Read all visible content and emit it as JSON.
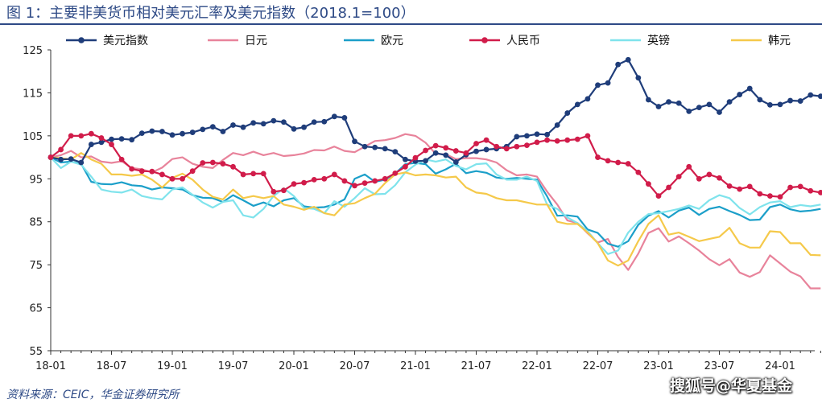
{
  "title": "图 1：主要非美货币相对美元汇率及美元指数（2018.1=100）",
  "source": "资料来源：CEIC，华金证券研究所",
  "watermark": "搜狐号@华夏基金",
  "chart_data": {
    "type": "line",
    "ylim": [
      55,
      125
    ],
    "yticks": [
      55,
      65,
      75,
      85,
      95,
      105,
      115,
      125
    ],
    "x_start": "2018-01",
    "x_end": "2024-08",
    "xtick_labels": [
      "18-01",
      "18-07",
      "19-01",
      "19-07",
      "20-01",
      "20-07",
      "21-01",
      "21-07",
      "22-01",
      "22-07",
      "23-01",
      "23-07",
      "24-01"
    ],
    "legend_placement": "top",
    "series": [
      {
        "name": "美元指数",
        "color": "#1f3d7a",
        "markers": true,
        "values": [
          100.0,
          99.5,
          99.6,
          98.8,
          103.0,
          103.5,
          104.2,
          104.3,
          104.1,
          105.6,
          106.1,
          106.0,
          105.2,
          105.5,
          105.8,
          106.5,
          107.1,
          106.0,
          107.5,
          107.0,
          108.0,
          107.8,
          108.5,
          108.2,
          106.6,
          107.0,
          108.2,
          108.3,
          109.5,
          109.2,
          103.7,
          102.5,
          102.3,
          102.0,
          101.3,
          99.5,
          99.1,
          99.2,
          101.0,
          100.5,
          98.9,
          100.6,
          101.4,
          101.8,
          102.0,
          102.5,
          104.8,
          105.0,
          105.4,
          105.3,
          107.5,
          110.3,
          112.3,
          113.6,
          116.8,
          117.3,
          121.6,
          122.7,
          118.5,
          113.4,
          111.8,
          112.9,
          112.6,
          110.7,
          111.6,
          112.3,
          110.5,
          112.9,
          114.6,
          116.0,
          113.4,
          112.2,
          112.3,
          113.2,
          113.1,
          114.5,
          114.2
        ]
      },
      {
        "name": "日元",
        "color": "#e8839b",
        "markers": false,
        "values": [
          100.0,
          100.5,
          101.5,
          100.0,
          100.2,
          99.0,
          98.7,
          99.1,
          97.5,
          97.2,
          96.5,
          97.6,
          99.6,
          100.0,
          98.5,
          97.8,
          97.5,
          99.4,
          101.0,
          100.5,
          101.3,
          100.5,
          101.0,
          100.3,
          100.5,
          100.9,
          101.7,
          101.6,
          102.5,
          101.5,
          101.2,
          102.5,
          103.8,
          104.0,
          104.5,
          105.4,
          105.0,
          103.4,
          100.8,
          100.7,
          99.6,
          99.8,
          99.8,
          99.5,
          98.8,
          97.0,
          95.8,
          96.0,
          95.5,
          92.0,
          89.0,
          85.3,
          84.7,
          82.3,
          80.2,
          81.0,
          76.8,
          73.8,
          77.6,
          82.4,
          83.5,
          80.4,
          81.6,
          80.0,
          78.3,
          76.3,
          74.9,
          76.3,
          73.2,
          72.2,
          73.3,
          77.2,
          75.3,
          73.4,
          72.3,
          69.5,
          69.5
        ]
      },
      {
        "name": "欧元",
        "color": "#1b9fc9",
        "markers": false,
        "values": [
          100.0,
          98.8,
          99.0,
          98.5,
          94.3,
          93.8,
          93.7,
          94.2,
          93.5,
          93.3,
          92.5,
          93.0,
          92.8,
          92.5,
          91.2,
          90.6,
          90.5,
          89.6,
          91.2,
          90.0,
          88.7,
          89.5,
          88.6,
          90.0,
          90.5,
          88.6,
          88.3,
          88.4,
          89.0,
          90.2,
          95.0,
          96.0,
          94.3,
          94.8,
          96.2,
          98.4,
          98.7,
          98.4,
          96.2,
          97.2,
          98.5,
          96.3,
          96.8,
          96.4,
          95.3,
          95.0,
          95.2,
          95.0,
          94.8,
          90.9,
          86.4,
          86.5,
          86.2,
          83.2,
          82.4,
          79.9,
          79.2,
          80.5,
          84.3,
          86.4,
          87.5,
          86.0,
          87.6,
          88.3,
          86.6,
          88.0,
          88.5,
          87.5,
          86.6,
          85.4,
          85.5,
          88.4,
          89.0,
          87.9,
          87.4,
          87.6,
          88.0
        ]
      },
      {
        "name": "人民币",
        "color": "#d11c4a",
        "markers": true,
        "values": [
          100.0,
          101.8,
          105.0,
          105.0,
          105.5,
          104.5,
          103.0,
          99.5,
          97.3,
          96.8,
          96.7,
          96.0,
          95.0,
          95.0,
          96.8,
          98.7,
          98.8,
          98.5,
          97.8,
          96.0,
          96.2,
          96.2,
          92.0,
          92.3,
          93.8,
          94.1,
          94.8,
          95.0,
          96.0,
          94.5,
          93.4,
          94.0,
          94.5,
          95.0,
          96.3,
          97.8,
          99.9,
          101.6,
          102.7,
          102.2,
          101.5,
          101.0,
          103.2,
          104.0,
          102.5,
          102.0,
          102.5,
          102.8,
          103.5,
          104.0,
          103.8,
          104.0,
          104.2,
          105.0,
          100.0,
          99.2,
          98.8,
          98.5,
          96.5,
          93.8,
          91.0,
          93.0,
          95.5,
          97.8,
          95.0,
          96.0,
          95.2,
          93.3,
          92.6,
          93.2,
          91.5,
          91.0,
          90.8,
          93.0,
          93.2,
          92.2,
          91.8
        ]
      },
      {
        "name": "英镑",
        "color": "#7fe3ec",
        "markers": false,
        "values": [
          100.0,
          97.5,
          99.0,
          98.3,
          95.5,
          92.5,
          92.0,
          91.8,
          92.5,
          91.0,
          90.5,
          90.2,
          92.5,
          93.0,
          91.3,
          89.5,
          88.3,
          89.6,
          90.0,
          86.5,
          86.0,
          88.0,
          91.0,
          92.8,
          91.0,
          88.2,
          88.0,
          87.0,
          89.8,
          88.5,
          90.5,
          92.8,
          91.4,
          91.5,
          93.5,
          96.5,
          98.3,
          99.5,
          99.0,
          99.5,
          98.0,
          97.2,
          98.4,
          98.6,
          96.0,
          94.8,
          94.8,
          95.5,
          94.5,
          89.0,
          88.0,
          86.0,
          84.7,
          82.8,
          80.0,
          77.5,
          78.3,
          82.5,
          85.0,
          86.8,
          87.0,
          87.5,
          88.0,
          88.8,
          88.0,
          90.0,
          91.2,
          90.5,
          88.2,
          86.7,
          88.4,
          89.5,
          89.8,
          88.4,
          88.9,
          88.6,
          89.0
        ]
      },
      {
        "name": "韩元",
        "color": "#f5c94a",
        "markers": false,
        "values": [
          100.0,
          99.8,
          99.5,
          101.0,
          99.5,
          98.5,
          96.0,
          96.0,
          95.7,
          96.0,
          94.8,
          93.0,
          95.2,
          96.2,
          94.8,
          92.5,
          90.8,
          90.2,
          92.5,
          90.5,
          91.0,
          90.5,
          91.0,
          89.0,
          88.5,
          87.8,
          88.5,
          87.0,
          86.5,
          89.0,
          89.3,
          90.5,
          91.5,
          94.0,
          96.0,
          96.5,
          95.8,
          96.0,
          95.8,
          95.3,
          95.5,
          93.0,
          91.8,
          91.5,
          90.5,
          90.0,
          90.0,
          89.5,
          89.0,
          89.0,
          85.0,
          84.5,
          84.5,
          82.5,
          80.0,
          76.0,
          74.8,
          76.0,
          80.5,
          84.5,
          86.5,
          82.0,
          82.5,
          81.5,
          80.5,
          81.0,
          81.5,
          83.6,
          80.0,
          79.0,
          79.0,
          82.8,
          82.6,
          80.0,
          80.0,
          77.3,
          77.2
        ]
      }
    ]
  }
}
